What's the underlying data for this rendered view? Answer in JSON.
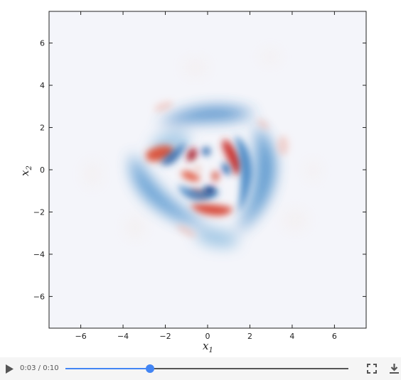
{
  "colors": {
    "background": "#f4f5fa",
    "positive": "#c0192b",
    "negative": "#0d4d9c",
    "player_accent": "#4285f4",
    "player_track": "#555555"
  },
  "chart_data": {
    "type": "heatmap",
    "title": "",
    "colormap": "RdBu_r (diverging, red = positive, blue = negative)",
    "xlim": [
      -7.5,
      7.5
    ],
    "ylim": [
      -7.5,
      7.5
    ],
    "xticks": [
      "−6",
      "−4",
      "−2",
      "0",
      "2",
      "4",
      "6"
    ],
    "yticks": [
      "6",
      "4",
      "2",
      "0",
      "−2",
      "−4",
      "−6"
    ],
    "xtick_values": [
      -6,
      -4,
      -2,
      0,
      2,
      4,
      6
    ],
    "ytick_values": [
      6,
      4,
      2,
      0,
      -2,
      -4,
      -6
    ],
    "xlabel_main": "x",
    "xlabel_sub": "1",
    "ylabel_main": "x",
    "ylabel_sub": "2",
    "grid": false,
    "pattern": "threefold-symmetric swirling interference pattern centered at origin, extent about radius 3.5"
  },
  "player": {
    "current_time": "0:03",
    "separator": " / ",
    "duration": "0:10",
    "progress": 0.3,
    "icons": {
      "play": "play-icon",
      "fullscreen": "fullscreen-icon",
      "download": "download-icon"
    }
  }
}
